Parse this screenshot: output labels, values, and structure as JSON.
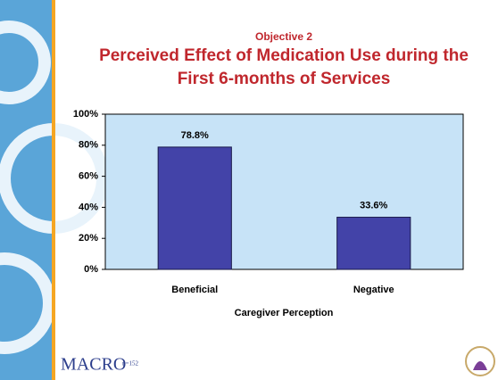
{
  "chart_data": {
    "type": "bar",
    "subtitle": "Objective 2",
    "title": "Perceived Effect of Medication Use during the First 6-months of Services",
    "categories": [
      "Beneficial",
      "Negative"
    ],
    "values": [
      78.8,
      33.6
    ],
    "value_labels": [
      "78.8%",
      "33.6%"
    ],
    "color": "#4343a8",
    "x_label": "Caregiver Perception",
    "ylim": [
      0,
      100
    ],
    "yticks": [
      {
        "value": 0,
        "label": "0%"
      },
      {
        "value": 20,
        "label": "20%"
      },
      {
        "value": 40,
        "label": "40%"
      },
      {
        "value": 60,
        "label": "60%"
      },
      {
        "value": 80,
        "label": "80%"
      },
      {
        "value": 100,
        "label": "100%"
      }
    ]
  },
  "footer": {
    "logo": "MACRO",
    "note": "n=152"
  }
}
